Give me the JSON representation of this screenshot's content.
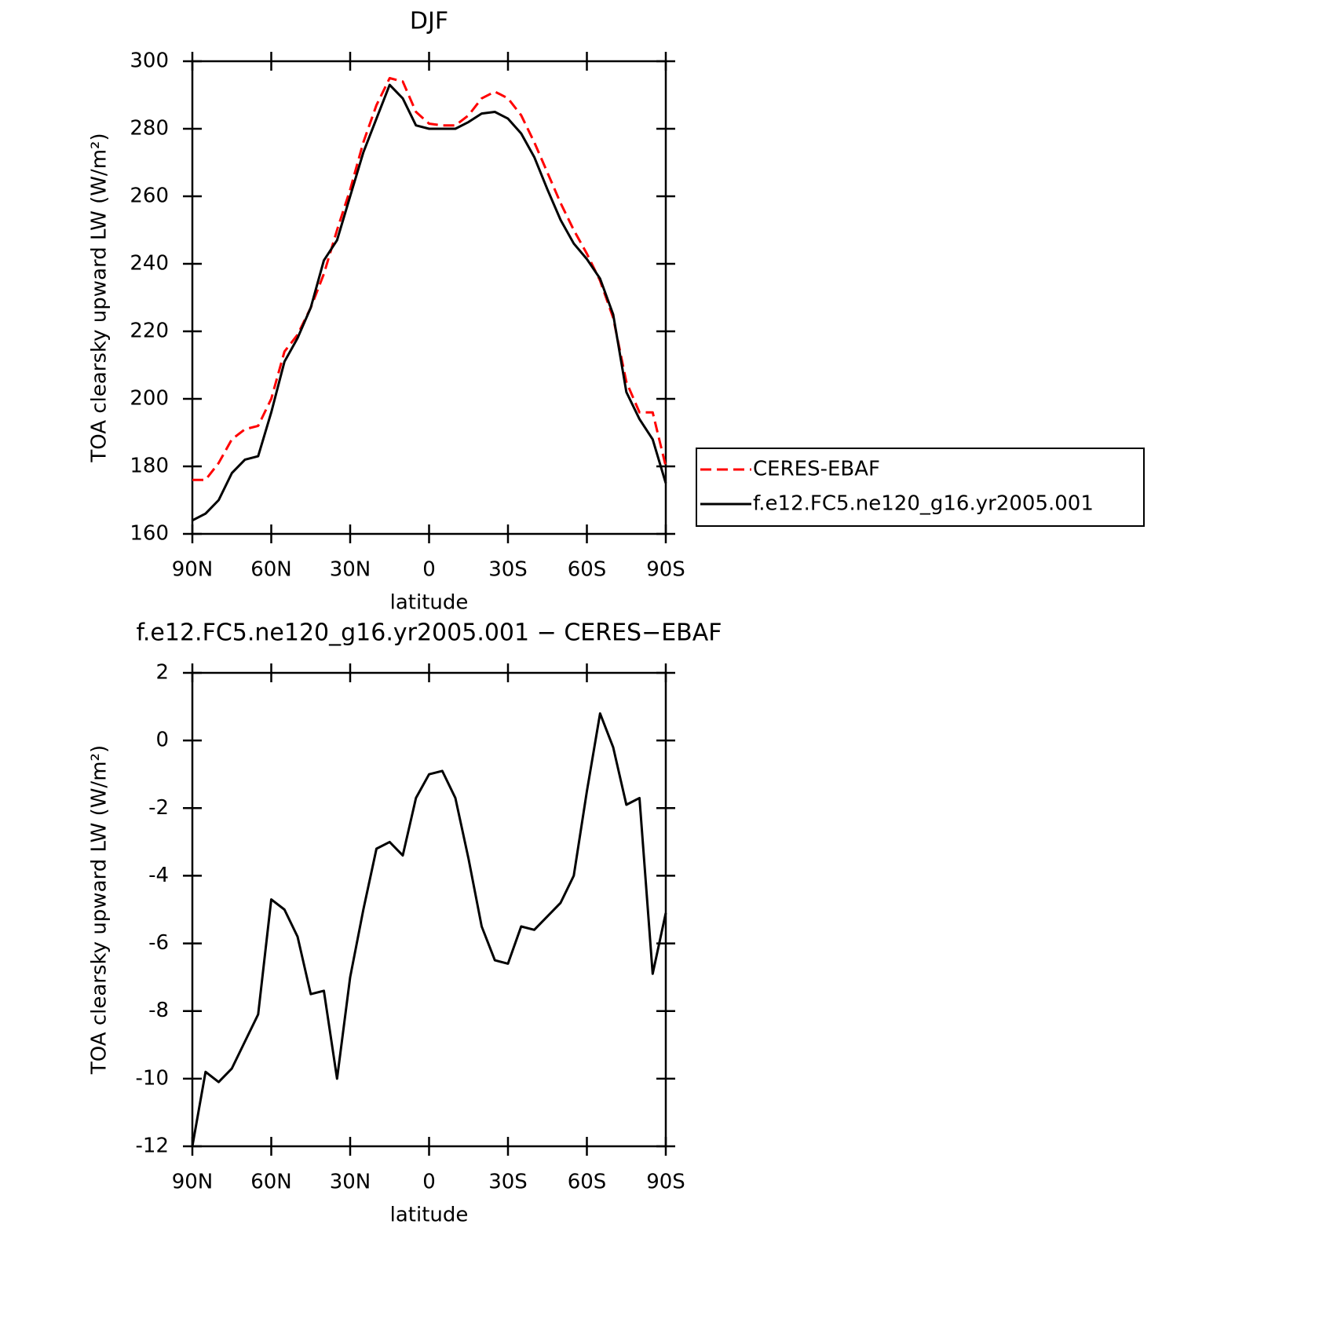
{
  "chart_data": [
    {
      "type": "line",
      "title": "DJF",
      "xlabel": "latitude",
      "ylabel": "TOA clearsky upward LW (W/m²)",
      "x": [
        90,
        85,
        80,
        75,
        70,
        65,
        60,
        55,
        50,
        45,
        40,
        35,
        30,
        25,
        20,
        15,
        10,
        5,
        0,
        -5,
        -10,
        -15,
        -20,
        -25,
        -30,
        -35,
        -40,
        -45,
        -50,
        -55,
        -60,
        -65,
        -70,
        -75,
        -80,
        -85,
        -90
      ],
      "series": [
        {
          "name": "CERES-EBAF",
          "color": "#ff0000",
          "dash": true,
          "values": [
            176,
            176,
            181,
            188,
            191,
            192,
            200,
            214,
            219,
            227,
            237,
            250,
            262,
            276,
            287,
            295,
            294,
            285,
            281.5,
            281,
            281,
            284,
            289,
            291,
            289,
            284,
            276,
            267,
            258,
            250,
            243,
            235,
            224,
            205,
            196,
            196,
            180
          ]
        },
        {
          "name": "f.e12.FC5.ne120_g16.yr2005.001",
          "color": "#000000",
          "dash": false,
          "values": [
            164,
            166,
            170,
            178,
            182,
            183,
            196,
            211,
            218,
            227,
            241,
            247,
            260,
            273,
            283,
            293,
            289,
            281,
            280,
            280,
            280,
            282,
            284.5,
            285,
            283,
            278.6,
            271.6,
            262,
            253,
            246,
            241.4,
            235.6,
            225,
            202,
            194,
            188,
            175
          ]
        }
      ],
      "xlim": [
        90,
        -90
      ],
      "xticks": [
        {
          "value": 90,
          "label": "90N"
        },
        {
          "value": 60,
          "label": "60N"
        },
        {
          "value": 30,
          "label": "30N"
        },
        0,
        {
          "value": -30,
          "label": "30S"
        },
        {
          "value": -60,
          "label": "60S"
        },
        {
          "value": -90,
          "label": "90S"
        }
      ],
      "ylim": [
        160,
        300
      ],
      "yticks": [
        160,
        180,
        200,
        220,
        240,
        260,
        280,
        300
      ],
      "legend": "right"
    },
    {
      "type": "line",
      "title": "f.e12.FC5.ne120_g16.yr2005.001 − CERES−EBAF",
      "xlabel": "latitude",
      "ylabel": "TOA clearsky upward LW (W/m²)",
      "x": [
        90,
        85,
        80,
        75,
        70,
        65,
        60,
        55,
        50,
        45,
        40,
        35,
        30,
        25,
        20,
        15,
        10,
        5,
        0,
        -5,
        -10,
        -15,
        -20,
        -25,
        -30,
        -35,
        -40,
        -45,
        -50,
        -55,
        -60,
        -65,
        -70,
        -75,
        -80,
        -85,
        -90
      ],
      "series": [
        {
          "color": "#000000",
          "dash": false,
          "values": [
            -12,
            -9.8,
            -10.1,
            -9.7,
            -8.9,
            -8.1,
            -4.7,
            -5.0,
            -5.8,
            -7.5,
            -7.4,
            -10,
            -7,
            -5,
            -3.2,
            -3,
            -3.4,
            -1.7,
            -1.0,
            -0.9,
            -1.7,
            -3.5,
            -5.5,
            -6.5,
            -6.6,
            -5.5,
            -5.6,
            -5.2,
            -4.8,
            -4.0,
            -1.5,
            0.8,
            -0.2,
            -1.9,
            -1.7,
            -6.9,
            -5.1
          ]
        }
      ],
      "xlim": [
        90,
        -90
      ],
      "xticks": [
        {
          "value": 90,
          "label": "90N"
        },
        {
          "value": 60,
          "label": "60N"
        },
        {
          "value": 30,
          "label": "30N"
        },
        0,
        {
          "value": -30,
          "label": "30S"
        },
        {
          "value": -60,
          "label": "60S"
        },
        {
          "value": -90,
          "label": "90S"
        }
      ],
      "ylim": [
        -12,
        2
      ],
      "yticks": [
        -12,
        -10,
        -8,
        -6,
        -4,
        -2,
        0,
        2
      ]
    }
  ]
}
